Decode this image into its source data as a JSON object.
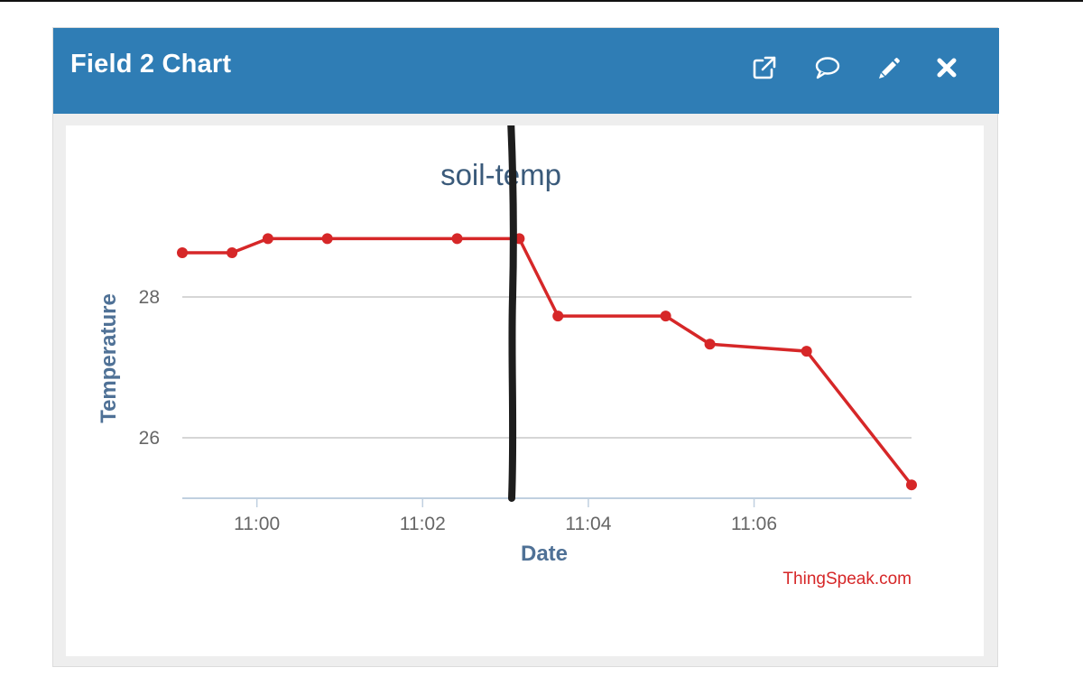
{
  "widget": {
    "title": "Field 2 Chart",
    "icons": [
      "external-link-icon",
      "comment-icon",
      "pencil-icon",
      "close-icon"
    ]
  },
  "colors": {
    "header": "#2f7db5",
    "line": "#d62728",
    "grid": "#c8c8c8",
    "axis_title": "#4f7196",
    "chart_title": "#3a5a7a",
    "credit": "#d62728"
  },
  "chart_data": {
    "type": "line",
    "title": "soil-temp",
    "xlabel": "Date",
    "ylabel": "Temperature",
    "credit": "ThingSpeak.com",
    "xlim": [
      "10:59:06",
      "11:07:54"
    ],
    "ylim": [
      25.14,
      28.95
    ],
    "x_ticks": [
      "11:00",
      "11:02",
      "11:04",
      "11:06"
    ],
    "y_ticks": [
      26,
      28
    ],
    "grid": true,
    "legend": "none",
    "series": [
      {
        "x": [
          "10:59:06",
          "10:59:42",
          "11:00:08",
          "11:00:51",
          "11:02:25",
          "11:03:10",
          "11:03:38",
          "11:04:56",
          "11:05:28",
          "11:06:38",
          "11:07:54"
        ],
        "y": [
          28.63,
          28.63,
          28.83,
          28.83,
          28.83,
          28.83,
          27.73,
          27.73,
          27.33,
          27.23,
          25.33
        ]
      }
    ]
  }
}
